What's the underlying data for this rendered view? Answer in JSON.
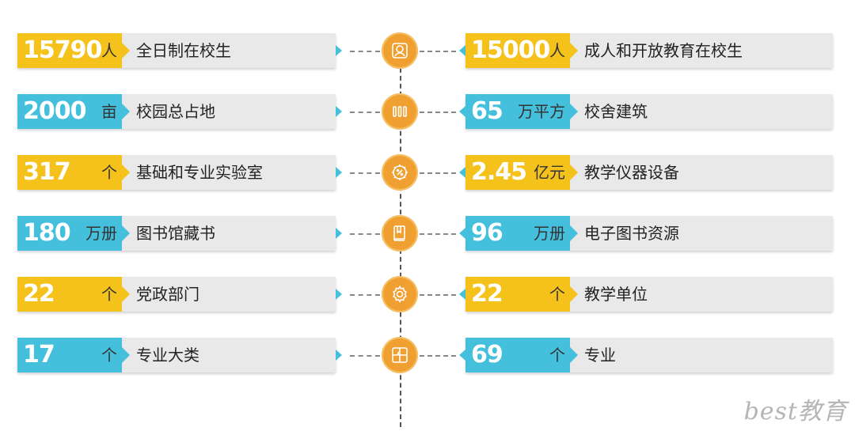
{
  "colors": {
    "yellow": "#f5c21b",
    "blue": "#44c0dd",
    "hub": "#f0a030"
  },
  "rows": [
    {
      "left": {
        "number": "15790",
        "unit": "人",
        "label": "全日制在校生",
        "color": "yellow"
      },
      "right": {
        "number": "15000",
        "unit": "人",
        "label": "成人和开放教育在校生",
        "color": "yellow"
      },
      "icon": "portrait-icon"
    },
    {
      "left": {
        "number": "2000",
        "unit": "亩",
        "label": "校园总占地",
        "color": "blue"
      },
      "right": {
        "number": "65",
        "unit": "万平方",
        "label": "校舍建筑",
        "color": "blue"
      },
      "icon": "building-columns-icon"
    },
    {
      "left": {
        "number": "317",
        "unit": "个",
        "label": "基础和专业实验室",
        "color": "yellow"
      },
      "right": {
        "number": "2.45",
        "unit": "亿元",
        "label": "教学仪器设备",
        "color": "yellow"
      },
      "icon": "percent-gear-icon"
    },
    {
      "left": {
        "number": "180",
        "unit": "万册",
        "label": "图书馆藏书",
        "color": "blue"
      },
      "right": {
        "number": "96",
        "unit": "万册",
        "label": "电子图书资源",
        "color": "blue"
      },
      "icon": "book-icon"
    },
    {
      "left": {
        "number": "22",
        "unit": "个",
        "label": "党政部门",
        "color": "yellow"
      },
      "right": {
        "number": "22",
        "unit": "个",
        "label": "教学单位",
        "color": "yellow"
      },
      "icon": "gear-icon"
    },
    {
      "left": {
        "number": "17",
        "unit": "个",
        "label": "专业大类",
        "color": "blue"
      },
      "right": {
        "number": "69",
        "unit": "个",
        "label": "专业",
        "color": "blue"
      },
      "icon": "puzzle-icon"
    }
  ],
  "watermark": "best教育"
}
